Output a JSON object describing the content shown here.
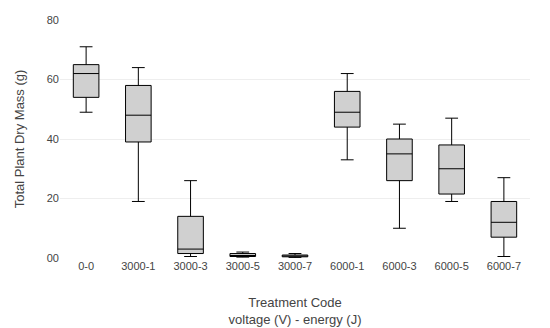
{
  "chart_data": {
    "type": "box",
    "categories": [
      "0-0",
      "3000-1",
      "3000-3",
      "3000-5",
      "3000-7",
      "6000-1",
      "6000-3",
      "6000-5",
      "6000-7"
    ],
    "boxes": [
      {
        "whislo": 49.0,
        "q1": 54.0,
        "med": 62.0,
        "q3": 65.0,
        "whishi": 71.0
      },
      {
        "whislo": 19.0,
        "q1": 39.0,
        "med": 48.0,
        "q3": 58.0,
        "whishi": 64.0
      },
      {
        "whislo": 0.5,
        "q1": 1.5,
        "med": 3.0,
        "q3": 14.0,
        "whishi": 26.0
      },
      {
        "whislo": 0.3,
        "q1": 0.5,
        "med": 0.8,
        "q3": 1.5,
        "whishi": 2.0
      },
      {
        "whislo": 0.2,
        "q1": 0.4,
        "med": 0.6,
        "q3": 1.0,
        "whishi": 1.5
      },
      {
        "whislo": 33.0,
        "q1": 44.0,
        "med": 49.0,
        "q3": 56.0,
        "whishi": 62.0
      },
      {
        "whislo": 10.0,
        "q1": 26.0,
        "med": 35.0,
        "q3": 40.0,
        "whishi": 45.0
      },
      {
        "whislo": 19.0,
        "q1": 21.5,
        "med": 30.0,
        "q3": 38.0,
        "whishi": 47.0
      },
      {
        "whislo": 0.5,
        "q1": 7.0,
        "med": 12.0,
        "q3": 19.0,
        "whishi": 27.0
      }
    ],
    "ylabel": "Total Plant Dry Mass (g)",
    "xlabel": "Treatment Code\nvoltage (V) - energy (J)",
    "ylim": [
      0,
      80
    ],
    "yticks": [
      {
        "value": 0,
        "label": "00"
      },
      20,
      40,
      60,
      80
    ],
    "color": "#d0d0d0",
    "grid": true
  }
}
